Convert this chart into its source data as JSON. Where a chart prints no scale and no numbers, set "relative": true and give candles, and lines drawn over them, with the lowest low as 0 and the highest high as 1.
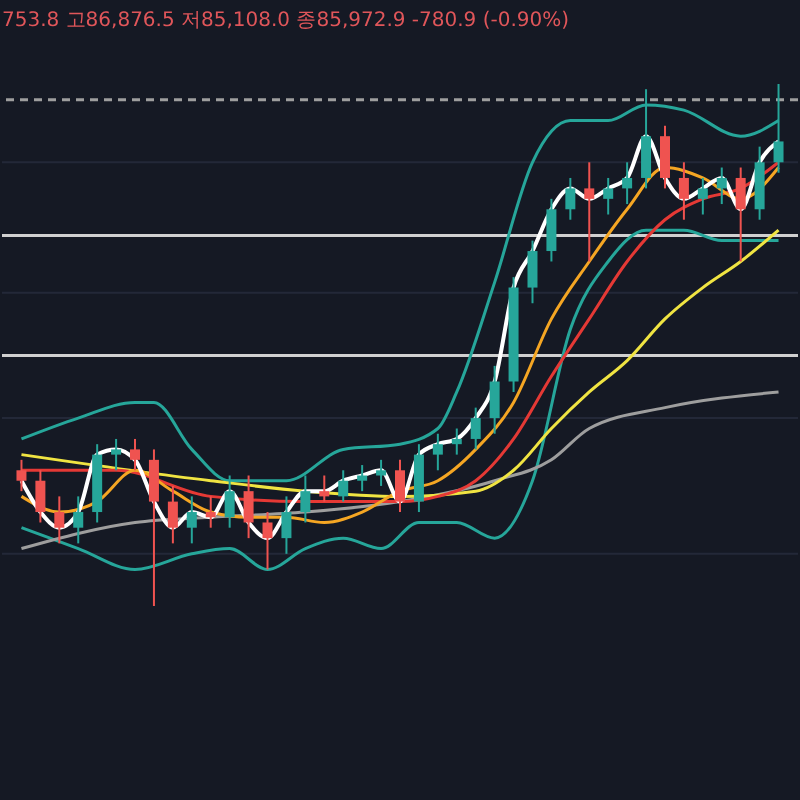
{
  "chart_data": {
    "type": "candlestick",
    "relative": true,
    "grid": true,
    "annotations": [
      "753.8 고86,876.5 저85,108.0 종85,972.9 -780.9 (-0.90%)"
    ],
    "categories": [
      null,
      null,
      null,
      null,
      null,
      null,
      null,
      null,
      null,
      null,
      null,
      null,
      null,
      null,
      null,
      null,
      null,
      null,
      null,
      null,
      null,
      null,
      null,
      null,
      null,
      null,
      null,
      null,
      null,
      null,
      null,
      null,
      null,
      null,
      null,
      null,
      null,
      null,
      null,
      null,
      null
    ],
    "ohlc": [
      [
        0.26,
        0.28,
        0.22,
        0.24
      ],
      [
        0.24,
        0.26,
        0.16,
        0.18
      ],
      [
        0.18,
        0.21,
        0.12,
        0.15
      ],
      [
        0.15,
        0.21,
        0.12,
        0.18
      ],
      [
        0.18,
        0.31,
        0.16,
        0.29
      ],
      [
        0.29,
        0.32,
        0.26,
        0.3
      ],
      [
        0.3,
        0.32,
        0.26,
        0.28
      ],
      [
        0.28,
        0.3,
        0,
        0.2
      ],
      [
        0.2,
        0.23,
        0.12,
        0.15
      ],
      [
        0.15,
        0.21,
        0.12,
        0.18
      ],
      [
        0.18,
        0.21,
        0.15,
        0.17
      ],
      [
        0.17,
        0.25,
        0.15,
        0.22
      ],
      [
        0.22,
        0.25,
        0.13,
        0.16
      ],
      [
        0.16,
        0.18,
        0.07,
        0.13
      ],
      [
        0.13,
        0.21,
        0.1,
        0.18
      ],
      [
        0.18,
        0.25,
        0.16,
        0.22
      ],
      [
        0.22,
        0.25,
        0.2,
        0.21
      ],
      [
        0.21,
        0.26,
        0.2,
        0.24
      ],
      [
        0.24,
        0.27,
        0.22,
        0.25
      ],
      [
        0.25,
        0.28,
        0.23,
        0.26
      ],
      [
        0.26,
        0.28,
        0.18,
        0.2
      ],
      [
        0.2,
        0.31,
        0.18,
        0.29
      ],
      [
        0.29,
        0.33,
        0.26,
        0.31
      ],
      [
        0.31,
        0.34,
        0.29,
        0.32
      ],
      [
        0.32,
        0.38,
        0.3,
        0.36
      ],
      [
        0.36,
        0.46,
        0.33,
        0.43
      ],
      [
        0.43,
        0.63,
        0.41,
        0.61
      ],
      [
        0.61,
        0.7,
        0.58,
        0.68
      ],
      [
        0.68,
        0.78,
        0.66,
        0.76
      ],
      [
        0.76,
        0.82,
        0.74,
        0.8
      ],
      [
        0.8,
        0.85,
        0.66,
        0.78
      ],
      [
        0.78,
        0.82,
        0.75,
        0.8
      ],
      [
        0.8,
        0.85,
        0.77,
        0.82
      ],
      [
        0.82,
        0.99,
        0.8,
        0.9
      ],
      [
        0.9,
        0.92,
        0.8,
        0.82
      ],
      [
        0.82,
        0.85,
        0.74,
        0.78
      ],
      [
        0.78,
        0.82,
        0.75,
        0.8
      ],
      [
        0.8,
        0.84,
        0.77,
        0.82
      ],
      [
        0.82,
        0.84,
        0.66,
        0.76
      ],
      [
        0.76,
        0.88,
        0.74,
        0.85
      ],
      [
        0.85,
        1,
        0.83,
        0.89
      ]
    ],
    "series": [
      {
        "type": "line",
        "color": "#26a69a",
        "values": [
          0.32,
          null,
          null,
          0.36,
          null,
          null,
          0.39,
          0.39,
          null,
          0.3,
          null,
          0.24,
          null,
          null,
          0.24,
          null,
          null,
          0.3,
          null,
          null,
          0.31,
          null,
          0.34,
          0.41,
          null,
          0.62,
          null,
          0.85,
          null,
          0.93,
          null,
          0.93,
          null,
          0.96,
          null,
          0.95,
          null,
          null,
          0.9,
          null,
          0.93
        ]
      },
      {
        "type": "line",
        "color": "#26a69a",
        "values": [
          0.15,
          null,
          null,
          0.11,
          null,
          null,
          0.07,
          null,
          null,
          0.1,
          null,
          0.11,
          null,
          0.07,
          null,
          0.11,
          null,
          0.13,
          null,
          0.11,
          null,
          0.16,
          null,
          0.16,
          null,
          0.13,
          null,
          0.24,
          null,
          0.53,
          null,
          0.66,
          null,
          0.72,
          null,
          0.72,
          null,
          0.7,
          null,
          null,
          0.7
        ]
      },
      {
        "type": "line",
        "color": "#9e9e9e",
        "values": [
          0.11,
          null,
          null,
          null,
          null,
          null,
          0.16,
          null,
          null,
          null,
          0.17,
          null,
          null,
          null,
          null,
          0.18,
          null,
          null,
          null,
          null,
          0.2,
          null,
          null,
          null,
          null,
          0.24,
          null,
          null,
          0.28,
          null,
          0.34,
          null,
          null,
          null,
          0.38,
          null,
          null,
          null,
          null,
          null,
          0.41
        ]
      },
      {
        "type": "line",
        "color": "#f0e442",
        "values": [
          0.29,
          null,
          null,
          null,
          null,
          null,
          null,
          null,
          null,
          null,
          0.24,
          null,
          null,
          null,
          null,
          0.22,
          null,
          null,
          null,
          null,
          0.21,
          null,
          null,
          null,
          0.22,
          null,
          0.26,
          null,
          0.34,
          null,
          0.41,
          null,
          0.47,
          null,
          0.55,
          null,
          0.61,
          null,
          0.66,
          null,
          0.72
        ]
      },
      {
        "type": "line",
        "color": "#e53935",
        "values": [
          0.26,
          null,
          null,
          null,
          null,
          0.26,
          null,
          null,
          null,
          null,
          0.21,
          null,
          null,
          null,
          null,
          0.2,
          null,
          null,
          null,
          null,
          0.2,
          null,
          0.21,
          null,
          0.24,
          null,
          0.32,
          null,
          0.44,
          null,
          0.55,
          null,
          0.66,
          null,
          0.74,
          null,
          0.78,
          null,
          0.8,
          null,
          0.85
        ]
      },
      {
        "type": "line",
        "color": "#f5a623",
        "values": [
          0.21,
          null,
          0.18,
          null,
          0.2,
          null,
          0.26,
          null,
          0.22,
          null,
          0.18,
          null,
          0.17,
          null,
          0.17,
          null,
          0.16,
          null,
          0.18,
          null,
          0.22,
          null,
          0.24,
          null,
          0.3,
          null,
          0.39,
          null,
          0.55,
          null,
          0.66,
          null,
          0.76,
          null,
          0.84,
          null,
          0.82,
          null,
          0.78,
          null,
          0.84
        ]
      },
      {
        "type": "line",
        "color": "#ffffff",
        "values": [
          0.24,
          0.18,
          0.15,
          0.18,
          0.29,
          0.3,
          0.28,
          0.2,
          0.15,
          0.18,
          0.17,
          0.22,
          0.16,
          0.13,
          0.18,
          0.22,
          0.22,
          0.24,
          0.25,
          0.26,
          0.2,
          0.29,
          0.31,
          0.32,
          0.36,
          0.43,
          0.61,
          0.68,
          0.76,
          0.8,
          0.78,
          0.8,
          0.82,
          0.9,
          0.82,
          0.78,
          0.8,
          0.82,
          0.76,
          0.85,
          0.89
        ]
      }
    ],
    "ref_lines": [
      {
        "axis": "y",
        "value": 0.97,
        "color": "#9e9e9e",
        "line_style": "dashed"
      },
      {
        "axis": "y",
        "value": 0.71,
        "color": "#d0d0d0"
      },
      {
        "axis": "y",
        "value": 0.48,
        "color": "#d0d0d0"
      }
    ]
  }
}
